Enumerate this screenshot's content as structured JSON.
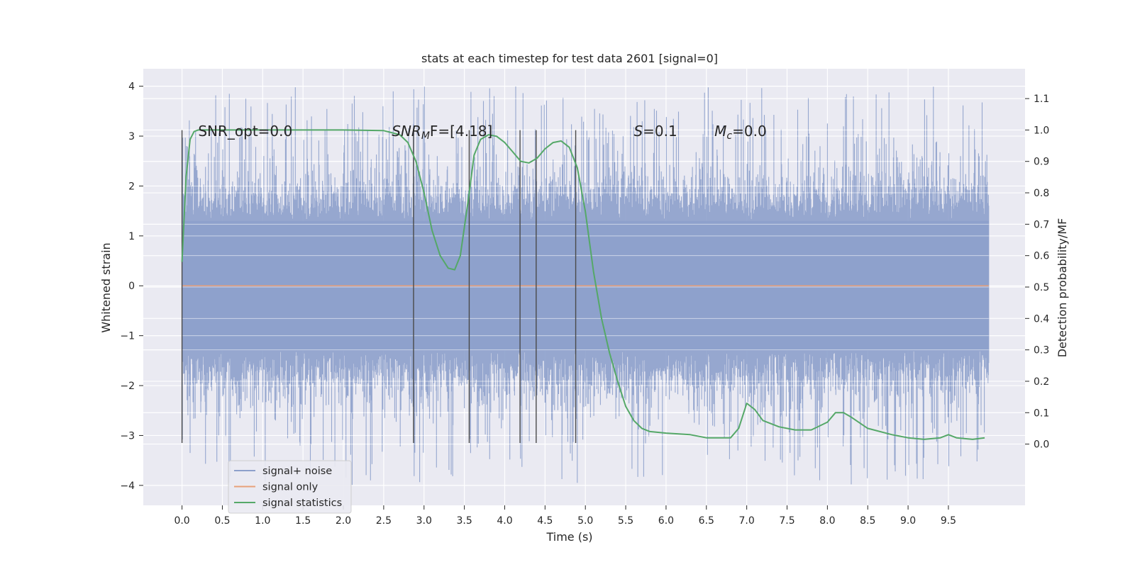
{
  "chart_data": {
    "type": "line",
    "title": "stats at each timestep for test data 2601 [signal=0]",
    "xlabel": "Time (s)",
    "ylabel": "Whitened strain",
    "y2label": "Detection probability/MF",
    "xlim": [
      -0.48,
      10.45
    ],
    "ylim": [
      -4.4,
      4.35
    ],
    "y2lim": [
      -0.195,
      1.195
    ],
    "xticks": [
      0.0,
      0.5,
      1.0,
      1.5,
      2.0,
      2.5,
      3.0,
      3.5,
      4.0,
      4.5,
      5.0,
      5.5,
      6.0,
      6.5,
      7.0,
      7.5,
      8.0,
      8.5,
      9.0,
      9.5
    ],
    "xtick_labels": [
      "0.0",
      "0.5",
      "1.0",
      "1.5",
      "2.0",
      "2.5",
      "3.0",
      "3.5",
      "4.0",
      "4.5",
      "5.0",
      "5.5",
      "6.0",
      "6.5",
      "7.0",
      "7.5",
      "8.0",
      "8.5",
      "9.0",
      "9.5"
    ],
    "yticks": [
      -4,
      -3,
      -2,
      -1,
      0,
      1,
      2,
      3,
      4
    ],
    "ytick_labels": [
      "−4",
      "−3",
      "−2",
      "−1",
      "0",
      "1",
      "2",
      "3",
      "4"
    ],
    "y2ticks": [
      0.0,
      0.1,
      0.2,
      0.3,
      0.4,
      0.5,
      0.6,
      0.7,
      0.8,
      0.9,
      1.0,
      1.1
    ],
    "y2tick_labels": [
      "0.0",
      "0.1",
      "0.2",
      "0.3",
      "0.4",
      "0.5",
      "0.6",
      "0.7",
      "0.8",
      "0.9",
      "1.0",
      "1.1"
    ],
    "grid": true,
    "legend_position": "lower-left",
    "colors": {
      "noise": "#8da0cb",
      "signal": "#e8a07a",
      "stats": "#55a868",
      "background": "#eaeaf2",
      "grid": "#ffffff",
      "vlines": "#4a4a4a"
    },
    "series": [
      {
        "name": "signal+ noise",
        "kind": "noise-band",
        "x_range": [
          0.0,
          10.0
        ],
        "core_amplitude": 1.3,
        "peak_amplitude": 4.0,
        "typical_peak_amplitude": 2.6
      },
      {
        "name": "signal only",
        "kind": "line",
        "x": [
          0.0,
          10.0
        ],
        "y": [
          0.0,
          0.0
        ]
      },
      {
        "name": "signal statistics",
        "kind": "line",
        "axis": "right",
        "x": [
          0.0,
          0.05,
          0.1,
          0.15,
          0.2,
          0.4,
          1.0,
          2.0,
          2.5,
          2.7,
          2.8,
          2.9,
          3.0,
          3.1,
          3.2,
          3.3,
          3.38,
          3.45,
          3.55,
          3.62,
          3.7,
          3.8,
          3.9,
          4.0,
          4.1,
          4.2,
          4.3,
          4.4,
          4.5,
          4.6,
          4.7,
          4.8,
          4.9,
          5.0,
          5.1,
          5.2,
          5.3,
          5.4,
          5.5,
          5.6,
          5.7,
          5.8,
          6.0,
          6.3,
          6.5,
          6.8,
          6.9,
          7.0,
          7.1,
          7.2,
          7.4,
          7.6,
          7.8,
          8.0,
          8.1,
          8.2,
          8.3,
          8.5,
          8.8,
          9.0,
          9.2,
          9.4,
          9.5,
          9.6,
          9.8,
          9.95
        ],
        "y": [
          0.58,
          0.85,
          0.97,
          0.995,
          1.0,
          1.0,
          1.0,
          1.0,
          0.998,
          0.985,
          0.96,
          0.9,
          0.8,
          0.68,
          0.6,
          0.56,
          0.555,
          0.6,
          0.78,
          0.92,
          0.97,
          0.985,
          0.98,
          0.96,
          0.93,
          0.9,
          0.895,
          0.91,
          0.94,
          0.96,
          0.965,
          0.945,
          0.88,
          0.74,
          0.55,
          0.4,
          0.29,
          0.2,
          0.12,
          0.075,
          0.05,
          0.04,
          0.035,
          0.03,
          0.02,
          0.02,
          0.05,
          0.13,
          0.11,
          0.075,
          0.055,
          0.045,
          0.045,
          0.07,
          0.1,
          0.1,
          0.085,
          0.05,
          0.03,
          0.02,
          0.015,
          0.02,
          0.03,
          0.02,
          0.015,
          0.02
        ]
      }
    ],
    "vlines": [
      0.0,
      2.87,
      3.56,
      4.19,
      4.39,
      4.88
    ],
    "vline_range": [
      -3.15,
      3.12
    ],
    "annotations": [
      {
        "text": "SNR_opt=0.0",
        "x": 0.2,
        "y": 3.1
      },
      {
        "text": "SNR",
        "sub": "M",
        "tail": "F=[4.18]",
        "italic": true,
        "x": 2.6,
        "y": 3.1
      },
      {
        "text": "S",
        "tail": "=0.1",
        "italic": true,
        "x": 5.6,
        "y": 3.1
      },
      {
        "text": "M",
        "sub": "c",
        "tail": "=0.0",
        "italic": true,
        "x": 6.6,
        "y": 3.1
      }
    ]
  }
}
